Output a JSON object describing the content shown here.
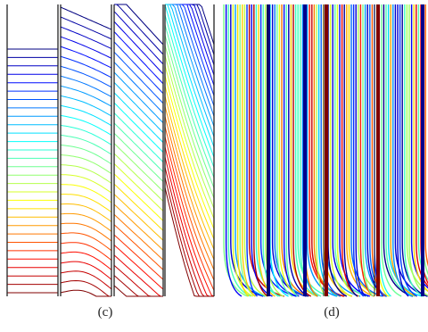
{
  "panels": [
    {
      "label": "(c)"
    },
    {
      "label": "(d)"
    }
  ]
}
